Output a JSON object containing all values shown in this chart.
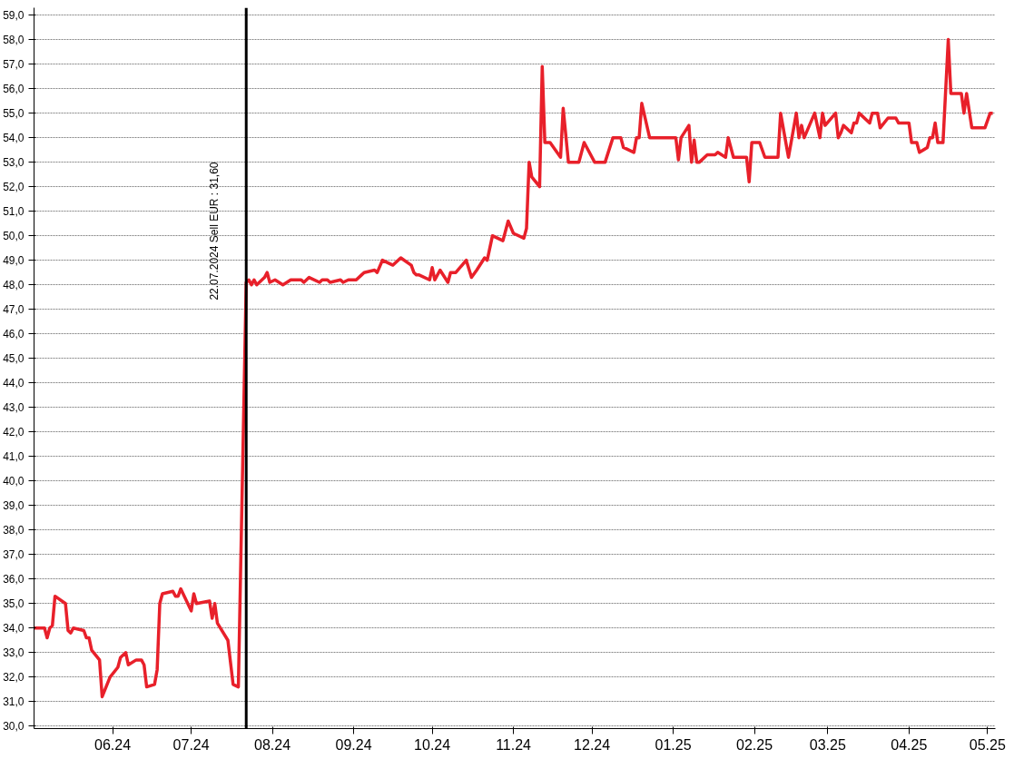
{
  "chart_data": {
    "type": "line",
    "grid": "y",
    "line_style": "solid",
    "marker": "none",
    "x": [
      "2024-05-02",
      "2024-05-06",
      "2024-05-07",
      "2024-05-08",
      "2024-05-09",
      "2024-05-10",
      "2024-05-14",
      "2024-05-15",
      "2024-05-16",
      "2024-05-17",
      "2024-05-21",
      "2024-05-22",
      "2024-05-23",
      "2024-05-24",
      "2024-05-27",
      "2024-05-28",
      "2024-05-31",
      "2024-06-03",
      "2024-06-04",
      "2024-06-06",
      "2024-06-07",
      "2024-06-10",
      "2024-06-12",
      "2024-06-13",
      "2024-06-14",
      "2024-06-17",
      "2024-06-18",
      "2024-06-19",
      "2024-06-20",
      "2024-06-24",
      "2024-06-25",
      "2024-06-26",
      "2024-06-27",
      "2024-07-01",
      "2024-07-02",
      "2024-07-03",
      "2024-07-08",
      "2024-07-09",
      "2024-07-10",
      "2024-07-11",
      "2024-07-15",
      "2024-07-17",
      "2024-07-19",
      "2024-07-22",
      "2024-07-23",
      "2024-07-24",
      "2024-07-25",
      "2024-07-26",
      "2024-07-29",
      "2024-07-30",
      "2024-07-31",
      "2024-08-02",
      "2024-08-05",
      "2024-08-08",
      "2024-08-12",
      "2024-08-13",
      "2024-08-14",
      "2024-08-15",
      "2024-08-19",
      "2024-08-20",
      "2024-08-22",
      "2024-08-23",
      "2024-08-27",
      "2024-08-28",
      "2024-08-30",
      "2024-09-02",
      "2024-09-04",
      "2024-09-05",
      "2024-09-09",
      "2024-09-10",
      "2024-09-12",
      "2024-09-16",
      "2024-09-19",
      "2024-09-23",
      "2024-09-24",
      "2024-09-25",
      "2024-09-26",
      "2024-09-30",
      "2024-10-01",
      "2024-10-02",
      "2024-10-04",
      "2024-10-07",
      "2024-10-08",
      "2024-10-10",
      "2024-10-14",
      "2024-10-16",
      "2024-10-18",
      "2024-10-21",
      "2024-10-22",
      "2024-10-24",
      "2024-10-28",
      "2024-10-30",
      "2024-11-01",
      "2024-11-05",
      "2024-11-06",
      "2024-11-07",
      "2024-11-08",
      "2024-11-11",
      "2024-11-12",
      "2024-11-13",
      "2024-11-15",
      "2024-11-19",
      "2024-11-20",
      "2024-11-22",
      "2024-11-26",
      "2024-11-28",
      "2024-12-02",
      "2024-12-06",
      "2024-12-09",
      "2024-12-12",
      "2024-12-13",
      "2024-12-17",
      "2024-12-18",
      "2024-12-19",
      "2024-12-20",
      "2024-12-23",
      "2025-01-02",
      "2025-01-03",
      "2025-01-04",
      "2025-01-07",
      "2025-01-08",
      "2025-01-09",
      "2025-01-10",
      "2025-01-11",
      "2025-01-14",
      "2025-01-17",
      "2025-01-18",
      "2025-01-21",
      "2025-01-22",
      "2025-01-24",
      "2025-01-29",
      "2025-01-30",
      "2025-01-31",
      "2025-02-03",
      "2025-02-05",
      "2025-02-10",
      "2025-02-11",
      "2025-02-14",
      "2025-02-17",
      "2025-02-18",
      "2025-02-19",
      "2025-02-20",
      "2025-02-24",
      "2025-02-26",
      "2025-02-27",
      "2025-02-28",
      "2025-03-04",
      "2025-03-05",
      "2025-03-06",
      "2025-03-07",
      "2025-03-10",
      "2025-03-11",
      "2025-03-12",
      "2025-03-13",
      "2025-03-17",
      "2025-03-18",
      "2025-03-20",
      "2025-03-21",
      "2025-03-24",
      "2025-03-27",
      "2025-03-28",
      "2025-04-01",
      "2025-04-02",
      "2025-04-04",
      "2025-04-05",
      "2025-04-08",
      "2025-04-09",
      "2025-04-10",
      "2025-04-11",
      "2025-04-12",
      "2025-04-14",
      "2025-04-16",
      "2025-04-17",
      "2025-04-21",
      "2025-04-22",
      "2025-04-23",
      "2025-04-25",
      "2025-04-30",
      "2025-05-02",
      "2025-05-03"
    ],
    "series": [
      {
        "color": "#e8202a",
        "values": [
          34.0,
          34.0,
          33.6,
          34.0,
          34.1,
          35.3,
          35.0,
          33.9,
          33.8,
          34.0,
          33.9,
          33.6,
          33.6,
          33.1,
          32.7,
          31.2,
          32.0,
          32.4,
          32.8,
          33.0,
          32.5,
          32.7,
          32.7,
          32.5,
          31.6,
          31.7,
          32.3,
          35.0,
          35.4,
          35.5,
          35.3,
          35.3,
          35.6,
          34.7,
          35.4,
          35.0,
          35.1,
          34.4,
          35.0,
          34.2,
          33.5,
          31.7,
          31.6,
          48.1,
          48.2,
          48.0,
          48.2,
          48.0,
          48.3,
          48.5,
          48.1,
          48.2,
          48.0,
          48.2,
          48.2,
          48.1,
          48.2,
          48.3,
          48.1,
          48.2,
          48.2,
          48.1,
          48.2,
          48.1,
          48.2,
          48.2,
          48.4,
          48.5,
          48.6,
          48.5,
          49.0,
          48.8,
          49.1,
          48.8,
          48.5,
          48.4,
          48.4,
          48.2,
          48.7,
          48.2,
          48.6,
          48.1,
          48.5,
          48.5,
          49.0,
          48.3,
          48.6,
          49.1,
          49.0,
          50.0,
          49.8,
          50.6,
          50.1,
          49.9,
          50.3,
          53.0,
          52.4,
          52.0,
          56.9,
          53.8,
          53.8,
          53.2,
          55.2,
          53.0,
          53.0,
          53.8,
          53.0,
          53.0,
          54.0,
          54.0,
          53.6,
          53.4,
          54.0,
          54.0,
          55.4,
          54.0,
          54.0,
          53.1,
          54.0,
          54.5,
          53.0,
          53.9,
          53.0,
          53.0,
          53.3,
          53.3,
          53.4,
          53.2,
          54.0,
          53.2,
          53.2,
          52.2,
          53.8,
          53.8,
          53.2,
          53.2,
          55.0,
          53.2,
          55.0,
          54.0,
          54.5,
          54.0,
          55.0,
          54.0,
          55.0,
          54.5,
          55.0,
          54.0,
          54.2,
          54.5,
          54.2,
          54.6,
          54.6,
          55.0,
          54.6,
          55.0,
          55.0,
          54.4,
          54.8,
          54.8,
          54.6,
          54.6,
          53.8,
          53.8,
          53.4,
          53.6,
          54.0,
          54.0,
          54.6,
          53.8,
          53.8,
          58.0,
          55.8,
          55.8,
          55.0,
          55.8,
          54.4,
          54.4,
          55.0,
          55.0
        ]
      }
    ],
    "xlim": [
      "2024-05-02",
      "2025-05-04"
    ],
    "xticks": [
      {
        "value": "2024-06-01",
        "label": "06.24"
      },
      {
        "value": "2024-07-01",
        "label": "07.24"
      },
      {
        "value": "2024-08-01",
        "label": "08.24"
      },
      {
        "value": "2024-09-01",
        "label": "09.24"
      },
      {
        "value": "2024-10-01",
        "label": "10.24"
      },
      {
        "value": "2024-11-01",
        "label": "11.24"
      },
      {
        "value": "2024-12-01",
        "label": "12.24"
      },
      {
        "value": "2025-01-01",
        "label": "01.25"
      },
      {
        "value": "2025-02-01",
        "label": "02.25"
      },
      {
        "value": "2025-03-01",
        "label": "03.25"
      },
      {
        "value": "2025-04-01",
        "label": "04.25"
      },
      {
        "value": "2025-05-01",
        "label": "05.25"
      }
    ],
    "ylim": [
      29.9,
      59.3
    ],
    "yticks": [
      {
        "value": 30,
        "label": "30,0"
      },
      {
        "value": 31,
        "label": "31,0"
      },
      {
        "value": 32,
        "label": "32,0"
      },
      {
        "value": 33,
        "label": "33,0"
      },
      {
        "value": 34,
        "label": "34,0"
      },
      {
        "value": 35,
        "label": "35,0"
      },
      {
        "value": 36,
        "label": "36,0"
      },
      {
        "value": 37,
        "label": "37,0"
      },
      {
        "value": 38,
        "label": "38,0"
      },
      {
        "value": 39,
        "label": "39,0"
      },
      {
        "value": 40,
        "label": "40,0"
      },
      {
        "value": 41,
        "label": "41,0"
      },
      {
        "value": 42,
        "label": "42,0"
      },
      {
        "value": 43,
        "label": "43,0"
      },
      {
        "value": 44,
        "label": "44,0"
      },
      {
        "value": 45,
        "label": "45,0"
      },
      {
        "value": 46,
        "label": "46,0"
      },
      {
        "value": 47,
        "label": "47,0"
      },
      {
        "value": 48,
        "label": "48,0"
      },
      {
        "value": 49,
        "label": "49,0"
      },
      {
        "value": 50,
        "label": "50,0"
      },
      {
        "value": 51,
        "label": "51,0"
      },
      {
        "value": 52,
        "label": "52,0"
      },
      {
        "value": 53,
        "label": "53,0"
      },
      {
        "value": 54,
        "label": "54,0"
      },
      {
        "value": 55,
        "label": "55,0"
      },
      {
        "value": 56,
        "label": "56,0"
      },
      {
        "value": 57,
        "label": "57,0"
      },
      {
        "value": 58,
        "label": "58,0"
      },
      {
        "value": 59,
        "label": "59,0"
      }
    ],
    "ref_lines": [
      {
        "axis": "x",
        "value": "2024-07-22",
        "label": "22.07.2024 Sell EUR : 31,60",
        "color": "#000000"
      }
    ]
  }
}
